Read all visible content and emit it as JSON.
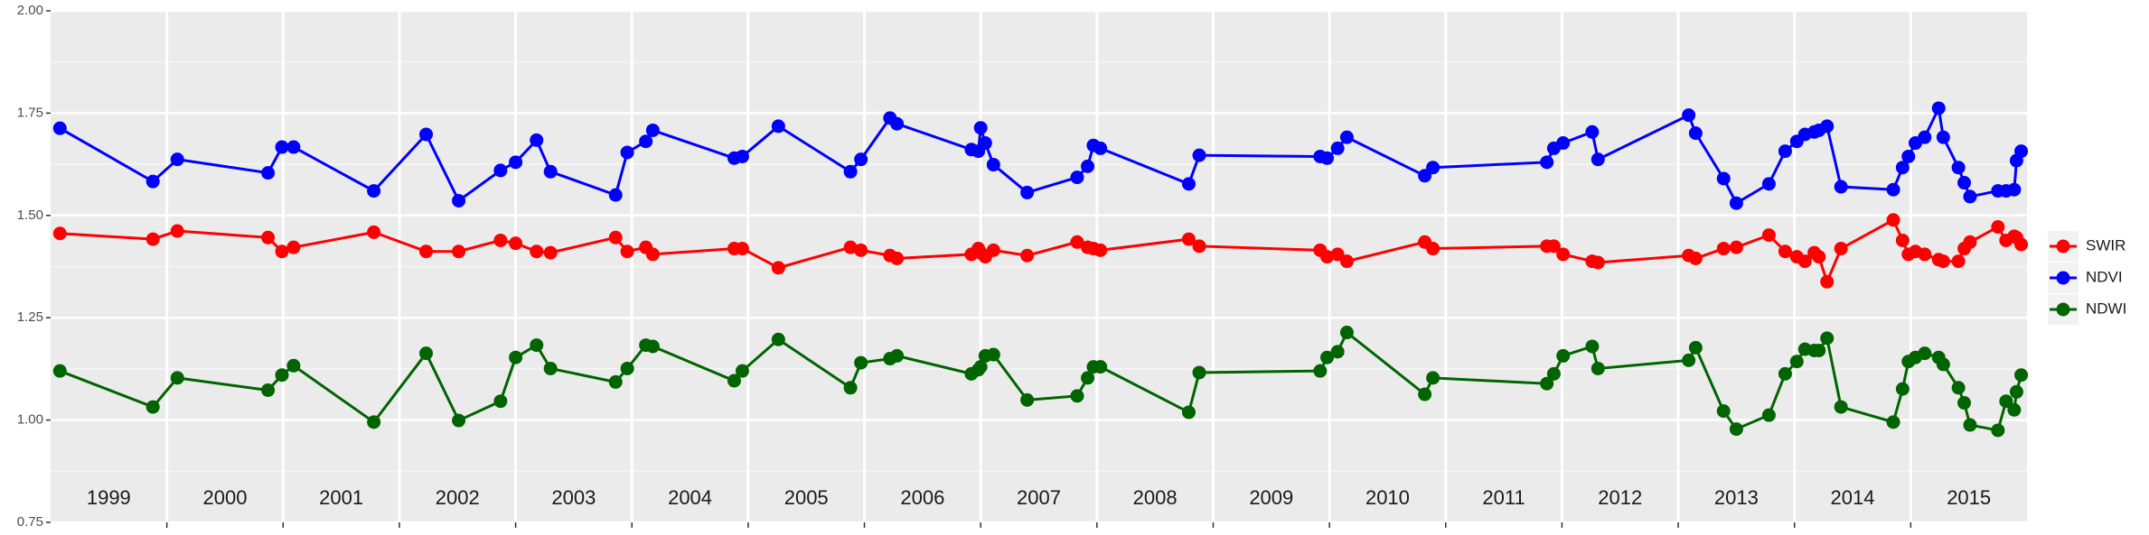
{
  "chart_data": {
    "type": "line",
    "xlim": [
      1999,
      2016
    ],
    "xticks": [
      2000,
      2001,
      2002,
      2003,
      2004,
      2005,
      2006,
      2007,
      2008,
      2009,
      2010,
      2011,
      2012,
      2013,
      2014,
      2015
    ],
    "year_labels": [
      "1999",
      "2000",
      "2001",
      "2002",
      "2003",
      "2004",
      "2005",
      "2006",
      "2007",
      "2008",
      "2009",
      "2010",
      "2011",
      "2012",
      "2013",
      "2014",
      "2015"
    ],
    "ylim": [
      0.75,
      2
    ],
    "yticks": [
      {
        "value": 2,
        "label": "2.00"
      },
      1.75,
      {
        "value": 1.5,
        "label": "1.50"
      },
      1.25,
      {
        "value": 1,
        "label": "1.00"
      },
      0.75
    ],
    "grid": true,
    "legend": "right",
    "x": [
      1999.08,
      1999.88,
      2000.09,
      2000.87,
      2000.99,
      2001.09,
      2001.78,
      2002.23,
      2002.51,
      2002.87,
      2003.0,
      2003.18,
      2003.3,
      2003.86,
      2003.96,
      2004.12,
      2004.18,
      2004.88,
      2004.95,
      2005.26,
      2005.88,
      2005.97,
      2006.22,
      2006.28,
      2006.92,
      2006.98,
      2007.0,
      2007.04,
      2007.11,
      2007.4,
      2007.83,
      2007.92,
      2007.97,
      2008.03,
      2008.79,
      2008.88,
      2009.92,
      2009.98,
      2010.07,
      2010.15,
      2010.82,
      2010.89,
      2011.87,
      2011.93,
      2012.01,
      2012.26,
      2012.31,
      2013.09,
      2013.15,
      2013.39,
      2013.5,
      2013.78,
      2013.92,
      2014.02,
      2014.09,
      2014.17,
      2014.21,
      2014.28,
      2014.4,
      2014.85,
      2014.93,
      2014.98,
      2015.04,
      2015.12,
      2015.24,
      2015.28,
      2015.41,
      2015.46,
      2015.51,
      2015.75,
      2015.82,
      2015.89,
      2015.91,
      2015.95
    ],
    "series": [
      {
        "name": "SWIR",
        "color": "#ff0000",
        "values": [
          1.456,
          1.442,
          1.462,
          1.446,
          1.412,
          1.422,
          1.459,
          1.412,
          1.412,
          1.439,
          1.432,
          1.412,
          1.409,
          1.446,
          1.412,
          1.422,
          1.405,
          1.419,
          1.419,
          1.372,
          1.422,
          1.415,
          1.402,
          1.395,
          1.405,
          1.419,
          1.409,
          1.399,
          1.415,
          1.402,
          1.435,
          1.422,
          1.419,
          1.415,
          1.442,
          1.425,
          1.415,
          1.399,
          1.405,
          1.388,
          1.435,
          1.419,
          1.425,
          1.425,
          1.405,
          1.388,
          1.385,
          1.402,
          1.395,
          1.419,
          1.422,
          1.452,
          1.412,
          1.399,
          1.388,
          1.409,
          1.399,
          1.338,
          1.419,
          1.489,
          1.439,
          1.405,
          1.412,
          1.405,
          1.392,
          1.388,
          1.388,
          1.419,
          1.435,
          1.472,
          1.439,
          1.449,
          1.446,
          1.429
        ]
      },
      {
        "name": "NDVI",
        "color": "#0000ff",
        "values": [
          1.713,
          1.583,
          1.637,
          1.604,
          1.667,
          1.667,
          1.56,
          1.698,
          1.536,
          1.61,
          1.63,
          1.684,
          1.607,
          1.55,
          1.654,
          1.681,
          1.708,
          1.64,
          1.644,
          1.718,
          1.607,
          1.637,
          1.738,
          1.724,
          1.661,
          1.657,
          1.714,
          1.677,
          1.624,
          1.556,
          1.593,
          1.62,
          1.671,
          1.664,
          1.577,
          1.647,
          1.644,
          1.64,
          1.664,
          1.691,
          1.597,
          1.617,
          1.63,
          1.664,
          1.677,
          1.704,
          1.637,
          1.745,
          1.701,
          1.59,
          1.53,
          1.577,
          1.657,
          1.681,
          1.698,
          1.704,
          1.708,
          1.718,
          1.57,
          1.563,
          1.617,
          1.644,
          1.677,
          1.691,
          1.762,
          1.691,
          1.617,
          1.58,
          1.546,
          1.56,
          1.56,
          1.563,
          1.634,
          1.657
        ]
      },
      {
        "name": "NDWI",
        "color": "#006400",
        "values": [
          1.12,
          1.032,
          1.103,
          1.073,
          1.11,
          1.133,
          0.995,
          1.163,
          0.999,
          1.046,
          1.153,
          1.183,
          1.126,
          1.093,
          1.126,
          1.183,
          1.18,
          1.096,
          1.12,
          1.197,
          1.079,
          1.14,
          1.15,
          1.157,
          1.113,
          1.123,
          1.13,
          1.157,
          1.16,
          1.049,
          1.059,
          1.103,
          1.13,
          1.13,
          1.019,
          1.116,
          1.12,
          1.153,
          1.167,
          1.214,
          1.063,
          1.103,
          1.089,
          1.113,
          1.157,
          1.18,
          1.126,
          1.146,
          1.177,
          1.022,
          0.978,
          1.012,
          1.113,
          1.143,
          1.173,
          1.17,
          1.17,
          1.2,
          1.032,
          0.995,
          1.076,
          1.143,
          1.153,
          1.163,
          1.153,
          1.136,
          1.079,
          1.042,
          0.988,
          0.975,
          1.046,
          1.025,
          1.069,
          1.11
        ]
      }
    ]
  }
}
